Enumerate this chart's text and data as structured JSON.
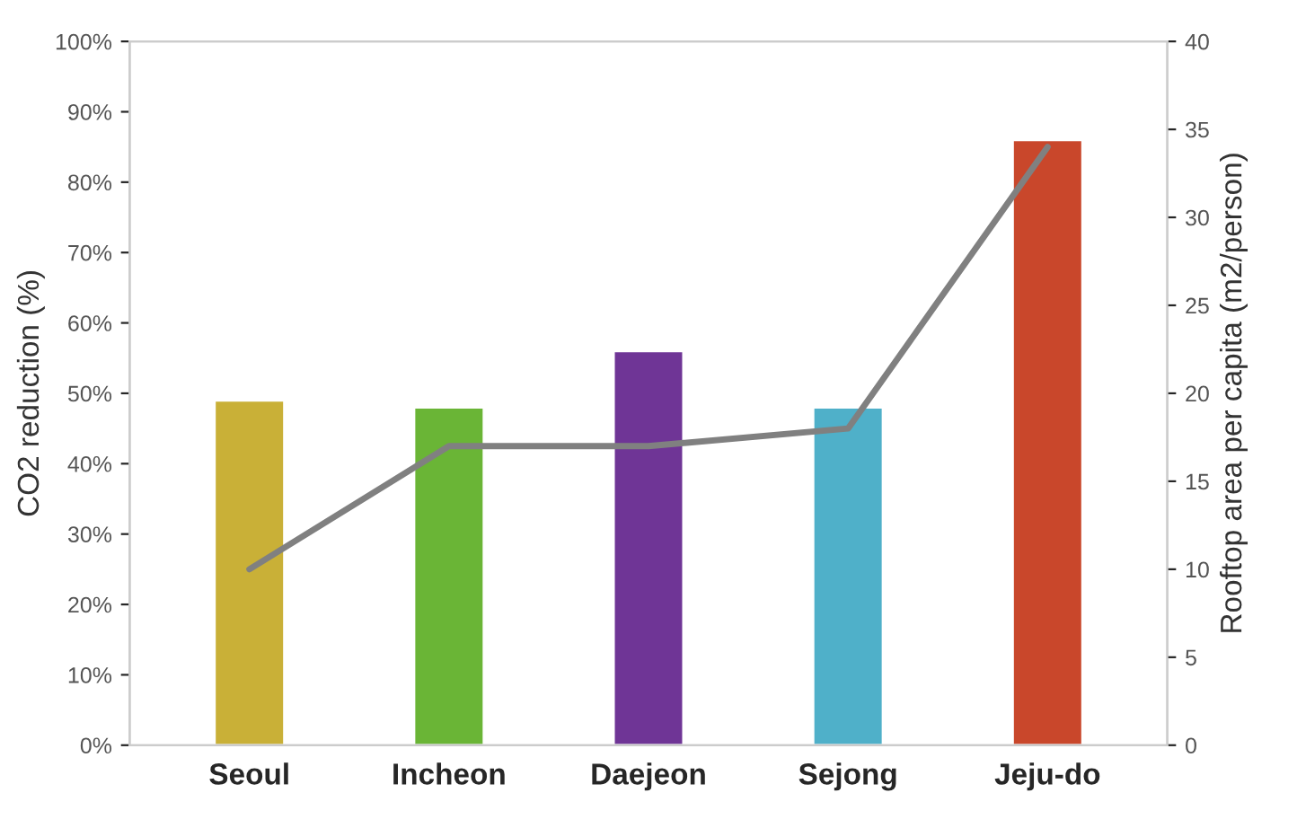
{
  "chart_data": {
    "type": "bar",
    "ylabel": "CO2 reduction (%)",
    "y2label": "Rooftop area per capita (m2/person)",
    "categories": [
      "Seoul",
      "Incheon",
      "Daejeon",
      "Sejong",
      "Jeju-do"
    ],
    "series": [
      {
        "colors": [
          "#c9b037",
          "#6ab536",
          "#6f3596",
          "#4fb0c9",
          "#c9472b"
        ],
        "values": [
          49,
          48,
          56,
          48,
          86
        ]
      },
      {
        "type": "line",
        "axis": "y2",
        "color": "#808080",
        "values": [
          10,
          17,
          17,
          18,
          34
        ]
      }
    ],
    "ylim": [
      0,
      100
    ],
    "yticks": [
      {
        "value": 0,
        "label": "0%"
      },
      {
        "value": 10,
        "label": "10%"
      },
      {
        "value": 20,
        "label": "20%"
      },
      {
        "value": 30,
        "label": "30%"
      },
      {
        "value": 40,
        "label": "40%"
      },
      {
        "value": 50,
        "label": "50%"
      },
      {
        "value": 60,
        "label": "60%"
      },
      {
        "value": 70,
        "label": "70%"
      },
      {
        "value": 80,
        "label": "80%"
      },
      {
        "value": 90,
        "label": "90%"
      },
      {
        "value": 100,
        "label": "100%"
      }
    ],
    "y2lim": [
      0,
      40
    ],
    "y2ticks": [
      0,
      5,
      10,
      15,
      20,
      25,
      30,
      35,
      40
    ],
    "grid": false,
    "marker": "none",
    "line_style": "solid"
  }
}
